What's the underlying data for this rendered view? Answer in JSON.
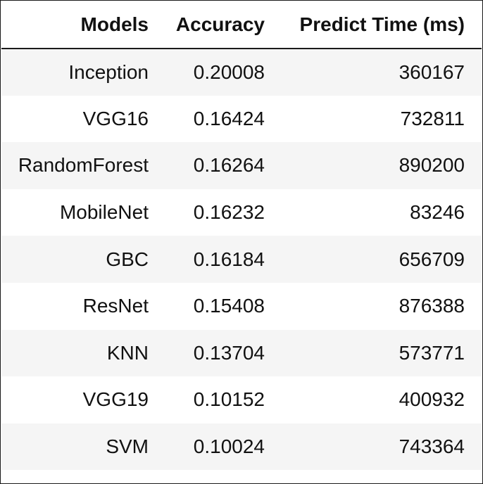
{
  "table": {
    "headers": [
      "Models",
      "Accuracy",
      "Predict Time (ms)"
    ],
    "rows": [
      [
        "Inception",
        "0.20008",
        "360167"
      ],
      [
        "VGG16",
        "0.16424",
        "732811"
      ],
      [
        "RandomForest",
        "0.16264",
        "890200"
      ],
      [
        "MobileNet",
        "0.16232",
        "83246"
      ],
      [
        "GBC",
        "0.16184",
        "656709"
      ],
      [
        "ResNet",
        "0.15408",
        "876388"
      ],
      [
        "KNN",
        "0.13704",
        "573771"
      ],
      [
        "VGG19",
        "0.10152",
        "400932"
      ],
      [
        "SVM",
        "0.10024",
        "743364"
      ]
    ]
  }
}
